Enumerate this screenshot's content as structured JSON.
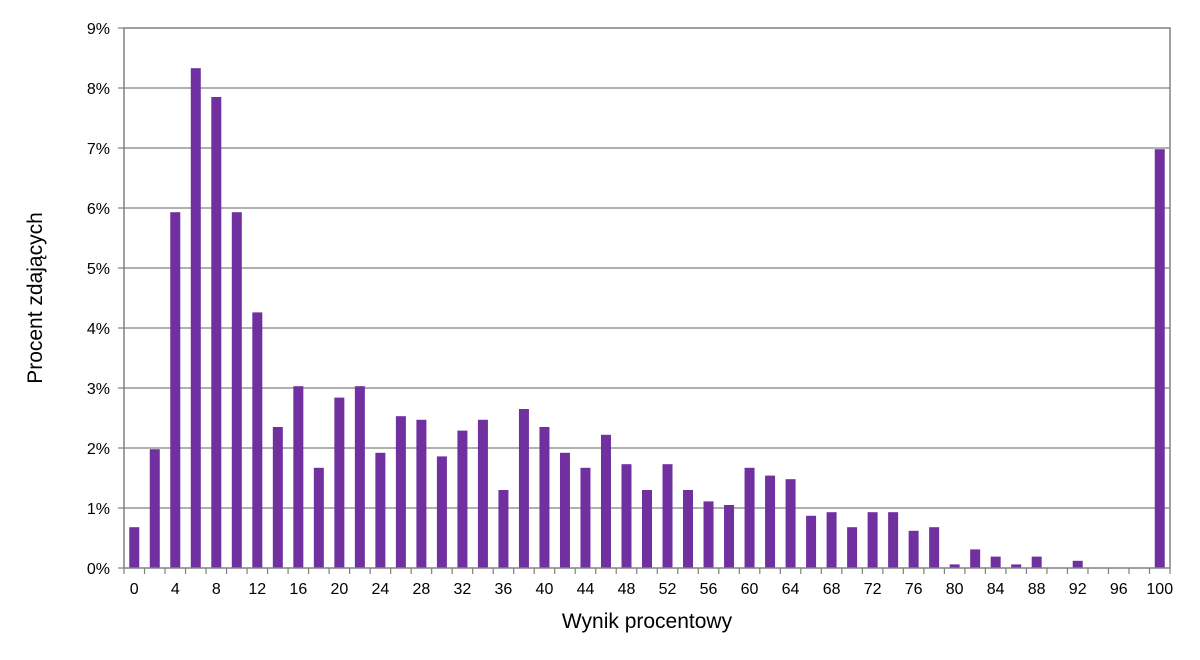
{
  "chart_data": {
    "type": "bar",
    "title": "",
    "xlabel": "Wynik procentowy",
    "ylabel": "Procent zdających",
    "ylim": [
      0,
      9
    ],
    "y_ticks": [
      0,
      1,
      2,
      3,
      4,
      5,
      6,
      7,
      8,
      9
    ],
    "y_tick_labels": [
      "0%",
      "1%",
      "2%",
      "3%",
      "4%",
      "5%",
      "6%",
      "7%",
      "8%",
      "9%"
    ],
    "y_unit": "%",
    "grid": "horizontal",
    "legend": "none",
    "bar_color": "#7030a0",
    "x": [
      0,
      2,
      4,
      6,
      8,
      10,
      12,
      14,
      16,
      18,
      20,
      22,
      24,
      26,
      28,
      30,
      32,
      34,
      36,
      38,
      40,
      42,
      44,
      46,
      48,
      50,
      52,
      54,
      56,
      58,
      60,
      62,
      64,
      66,
      68,
      70,
      72,
      74,
      76,
      78,
      80,
      82,
      84,
      86,
      88,
      90,
      92,
      94,
      96,
      98,
      100
    ],
    "x_tick_labels": [
      "0",
      "4",
      "8",
      "12",
      "16",
      "20",
      "24",
      "28",
      "32",
      "36",
      "40",
      "44",
      "48",
      "52",
      "56",
      "60",
      "64",
      "68",
      "72",
      "76",
      "80",
      "84",
      "88",
      "92",
      "96",
      "100"
    ],
    "values": [
      0.68,
      1.98,
      5.93,
      8.33,
      7.85,
      5.93,
      4.26,
      2.35,
      3.03,
      1.67,
      2.84,
      3.03,
      1.92,
      2.53,
      2.47,
      1.86,
      2.29,
      2.47,
      1.3,
      2.65,
      2.35,
      1.92,
      1.67,
      2.22,
      1.73,
      1.3,
      1.73,
      1.3,
      1.11,
      1.05,
      1.67,
      1.54,
      1.48,
      0.87,
      0.93,
      0.68,
      0.93,
      0.93,
      0.62,
      0.68,
      0.06,
      0.31,
      0.19,
      0.06,
      0.19,
      0.0,
      0.12,
      0.0,
      0.0,
      0.0,
      6.98
    ]
  }
}
